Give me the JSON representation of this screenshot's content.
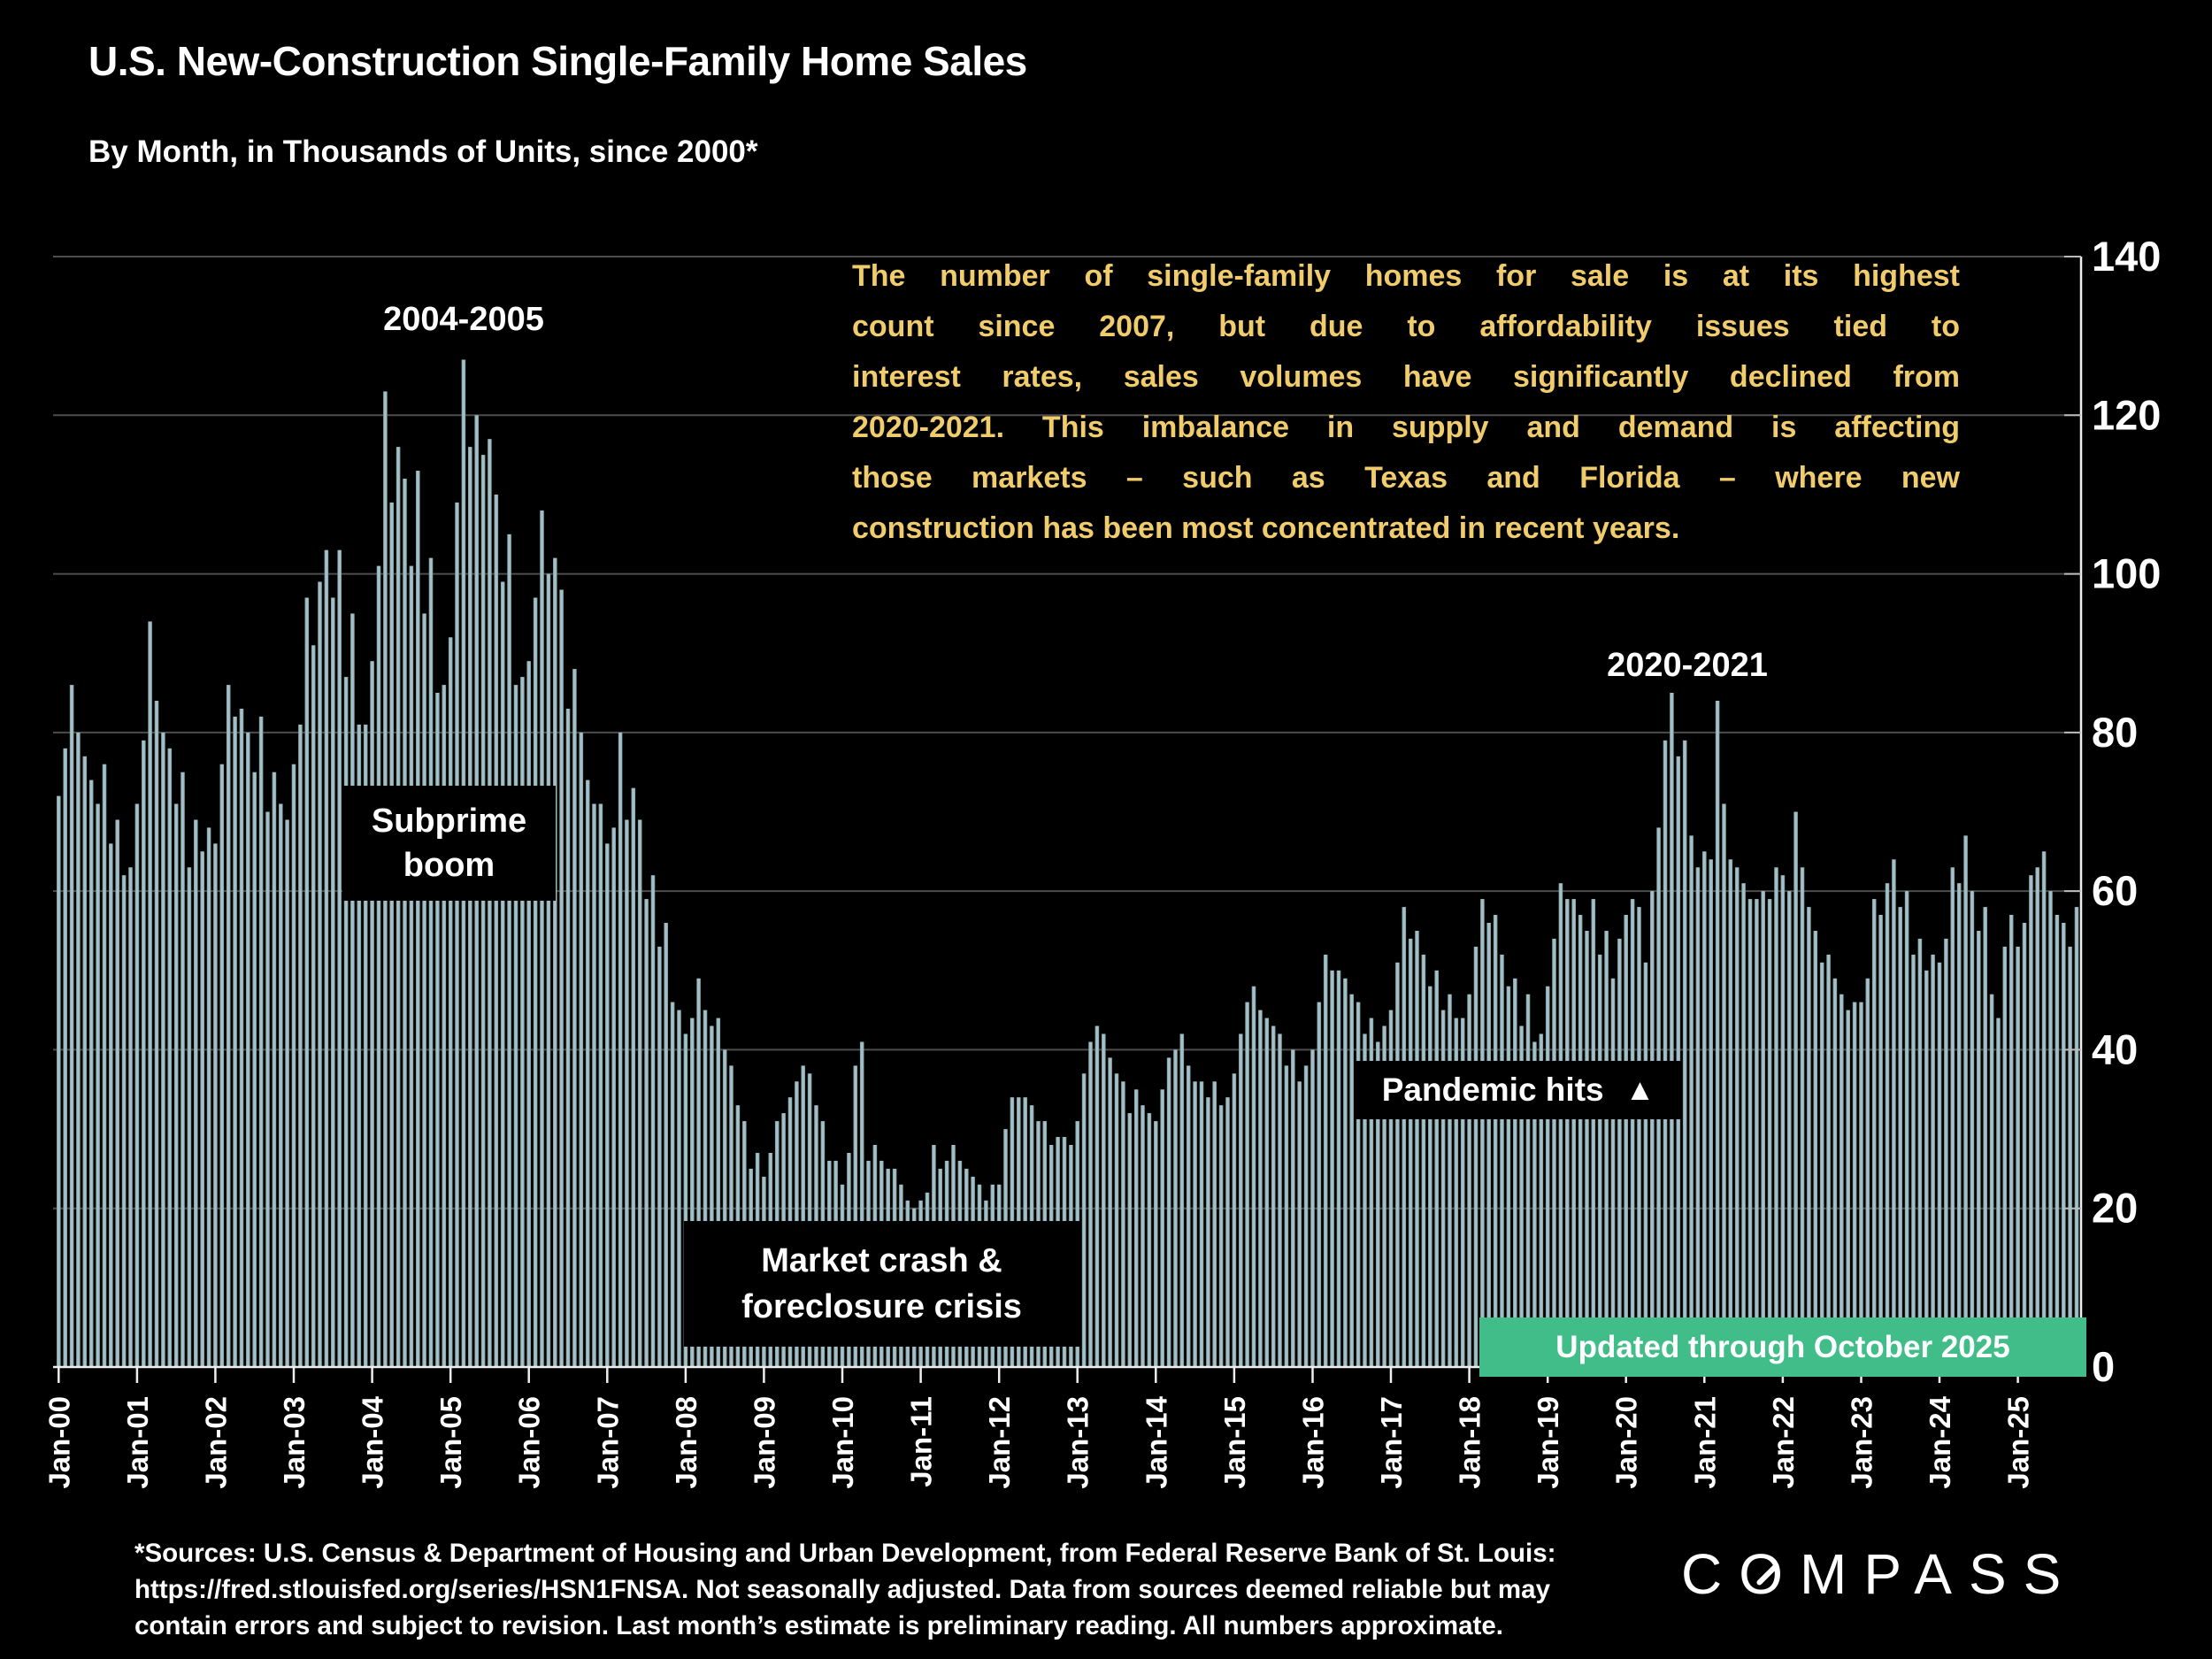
{
  "title": "U.S. New-Construction Single-Family Home Sales",
  "subtitle": "By Month, in Thousands of Units, since 2000*",
  "commentary": {
    "full_text": "The number of single-family homes for sale is at its highest count since 2007, but due to affordability issues tied to interest rates, sales volumes have significantly declined from 2020-2021. This imbalance in supply and demand is affecting those markets – such as Texas and Florida – where new construction has been most concentrated in recent years.",
    "lines": [
      "The number of single-family homes for sale is at its highest",
      "count since 2007, but due to affordability issues tied to",
      "interest rates, sales volumes have significantly declined from",
      "2020-2021. This imbalance in supply and demand is affecting",
      "those markets – such as Texas and Florida – where new",
      "construction has been most concentrated in recent years."
    ]
  },
  "annotations": {
    "peak_early": "2004-2005",
    "subprime": "Subprime boom",
    "crash": "Market crash & foreclosure crisis",
    "pandemic": "Pandemic hits",
    "pandemic_arrow": "▲",
    "peak_recent": "2020-2021",
    "updated": "Updated through October 2025"
  },
  "footer": {
    "lines": [
      "*Sources: U.S. Census & Department of Housing and Urban Development, from Federal Reserve Bank of St. Louis:",
      "https://fred.stlouisfed.org/series/HSN1FNSA. Not seasonally adjusted. Data from sources deemed reliable but may",
      "contain errors and subject to revision. Last month’s estimate is preliminary reading. All numbers approximate."
    ]
  },
  "logo": {
    "text": "COMPASS",
    "part1": "C",
    "part2": "O",
    "part3": "MPASS"
  },
  "colors": {
    "background": "#000000",
    "text": "#ffffff",
    "accent_yellow": "#f0cc6d",
    "badge_green": "#41bd89",
    "bar_center": "#a7bfcd",
    "bar_edge": "#6f988a",
    "grid": "#4d4d4d",
    "axis": "#eeeeee"
  },
  "chart_data": {
    "type": "bar",
    "unit": "thousands of units",
    "x_start": "Jan-2000",
    "x_end": "Oct-2025",
    "ylim": [
      0,
      140
    ],
    "y_ticks": [
      0,
      20,
      40,
      60,
      80,
      100,
      120,
      140
    ],
    "grid": true,
    "legend": false,
    "x_tick_labels": [
      "Jan-00",
      "Jan-01",
      "Jan-02",
      "Jan-03",
      "Jan-04",
      "Jan-05",
      "Jan-06",
      "Jan-07",
      "Jan-08",
      "Jan-09",
      "Jan-10",
      "Jan-11",
      "Jan-12",
      "Jan-13",
      "Jan-14",
      "Jan-15",
      "Jan-16",
      "Jan-17",
      "Jan-18",
      "Jan-19",
      "Jan-20",
      "Jan-21",
      "Jan-22",
      "Jan-23",
      "Jan-24",
      "Jan-25"
    ],
    "values_by_year": {
      "2000": [
        72,
        78,
        86,
        80,
        77,
        74,
        71,
        76,
        66,
        69,
        62,
        63
      ],
      "2001": [
        71,
        79,
        94,
        84,
        80,
        78,
        71,
        75,
        63,
        69,
        65,
        68
      ],
      "2002": [
        66,
        76,
        86,
        82,
        83,
        80,
        75,
        82,
        70,
        75,
        71,
        69
      ],
      "2003": [
        76,
        81,
        97,
        91,
        99,
        103,
        97,
        103,
        87,
        95,
        81,
        81
      ],
      "2004": [
        89,
        101,
        123,
        109,
        116,
        112,
        101,
        113,
        95,
        102,
        85,
        86
      ],
      "2005": [
        92,
        109,
        127,
        116,
        120,
        115,
        117,
        110,
        99,
        105,
        86,
        87
      ],
      "2006": [
        89,
        97,
        108,
        100,
        102,
        98,
        83,
        88,
        80,
        74,
        71,
        71
      ],
      "2007": [
        66,
        68,
        80,
        69,
        73,
        69,
        59,
        62,
        53,
        56,
        46,
        45
      ],
      "2008": [
        42,
        44,
        49,
        45,
        43,
        44,
        40,
        38,
        33,
        31,
        25,
        27
      ],
      "2009": [
        24,
        27,
        31,
        32,
        34,
        36,
        38,
        37,
        33,
        31,
        26,
        26
      ],
      "2010": [
        23,
        27,
        38,
        41,
        26,
        28,
        26,
        25,
        25,
        23,
        21,
        20
      ],
      "2011": [
        21,
        22,
        28,
        25,
        26,
        28,
        26,
        25,
        24,
        23,
        21,
        23
      ],
      "2012": [
        23,
        30,
        34,
        34,
        34,
        33,
        31,
        31,
        28,
        29,
        29,
        28
      ],
      "2013": [
        31,
        37,
        41,
        43,
        42,
        39,
        37,
        36,
        32,
        35,
        33,
        32
      ],
      "2014": [
        31,
        35,
        39,
        40,
        42,
        38,
        36,
        36,
        34,
        36,
        33,
        34
      ],
      "2015": [
        37,
        42,
        46,
        48,
        45,
        44,
        43,
        42,
        38,
        40,
        36,
        38
      ],
      "2016": [
        40,
        46,
        52,
        50,
        50,
        49,
        47,
        46,
        42,
        44,
        41,
        43
      ],
      "2017": [
        45,
        51,
        58,
        54,
        55,
        52,
        48,
        50,
        45,
        47,
        44,
        44
      ],
      "2018": [
        47,
        53,
        59,
        56,
        57,
        52,
        48,
        49,
        43,
        47,
        41,
        42
      ],
      "2019": [
        48,
        54,
        61,
        59,
        59,
        57,
        55,
        59,
        52,
        55,
        49,
        54
      ],
      "2020": [
        57,
        59,
        58,
        51,
        60,
        68,
        79,
        85,
        77,
        79,
        67,
        63
      ],
      "2021": [
        65,
        64,
        84,
        71,
        64,
        63,
        61,
        59,
        59,
        60,
        59,
        63
      ],
      "2022": [
        62,
        60,
        70,
        63,
        58,
        55,
        51,
        52,
        49,
        47,
        45,
        46
      ],
      "2023": [
        46,
        49,
        59,
        57,
        61,
        64,
        58,
        60,
        52,
        54,
        50,
        52
      ],
      "2024": [
        51,
        54,
        63,
        61,
        67,
        60,
        55,
        58,
        47,
        44,
        53,
        57
      ],
      "2025": [
        53,
        56,
        62,
        63,
        65,
        60,
        57,
        56,
        53,
        58
      ]
    }
  }
}
